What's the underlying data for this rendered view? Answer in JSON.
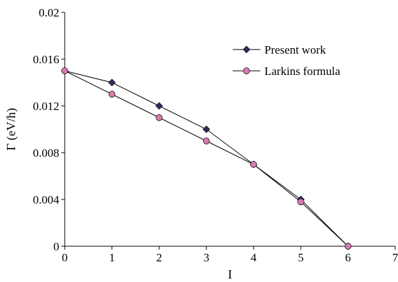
{
  "chart_data": {
    "type": "line",
    "xlabel": "I",
    "ylabel": "Γ (eV/h)",
    "xlim": [
      0,
      7
    ],
    "ylim": [
      0,
      0.02
    ],
    "x_ticks": [
      "0",
      "1",
      "2",
      "3",
      "4",
      "5",
      "6",
      "7"
    ],
    "y_ticks": [
      "0",
      "0.004",
      "0.008",
      "0.012",
      "0.016",
      "0.02"
    ],
    "grid": false,
    "legend_position": "upper-right",
    "series": [
      {
        "name": "Present work",
        "marker": "diamond",
        "color": "#2d2d5f",
        "x": [
          0,
          1,
          2,
          3,
          4,
          5,
          6
        ],
        "y": [
          0.015,
          0.014,
          0.012,
          0.01,
          0.007,
          0.004,
          0
        ]
      },
      {
        "name": "Larkins formula",
        "marker": "circle",
        "color": "#d97bb0",
        "x": [
          0,
          1,
          2,
          3,
          4,
          5,
          6
        ],
        "y": [
          0.015,
          0.013,
          0.011,
          0.009,
          0.007,
          0.0038,
          0
        ]
      }
    ]
  }
}
